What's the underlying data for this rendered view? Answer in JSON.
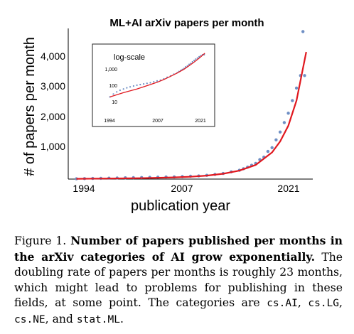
{
  "figure": {
    "main_chart": {
      "title": "ML+AI arXiv papers per month",
      "xlabel": "publication year",
      "ylabel": "# of papers per month",
      "y_ticks": [
        "1,000",
        "2,000",
        "3,000",
        "4,000"
      ],
      "x_ticks": [
        "1994",
        "2007",
        "2021"
      ]
    },
    "inset_chart": {
      "label": "log-scale",
      "y_ticks": [
        "10",
        "100",
        "1,000"
      ],
      "x_ticks": [
        "1994",
        "2007",
        "2021"
      ]
    },
    "colors": {
      "points": "#6f8fc4",
      "fit": "#e0181f"
    }
  },
  "caption": {
    "label": "Figure 1.",
    "bold_text": "Number of papers published per months in the arXiv categories of AI grow exponentially.",
    "text": "The doubling rate of papers per months is roughly 23 months, which might lead to problems for publishing in these fields, at some point.  The categories are",
    "categories": [
      "cs.AI",
      "cs.LG",
      "cs.NE",
      "stat.ML"
    ],
    "sep1": ", ",
    "sep2": ", ",
    "sep3": ", and ",
    "end": "."
  },
  "chart_data": [
    {
      "type": "scatter",
      "title": "ML+AI arXiv papers per month",
      "xlabel": "publication year",
      "ylabel": "# of papers per month",
      "xlim": [
        1993,
        2023
      ],
      "ylim": [
        0,
        4800
      ],
      "grid": false,
      "series": [
        {
          "x": [
            1994,
            1995,
            1996,
            1997,
            1998,
            1999,
            2000,
            2001,
            2002,
            2003,
            2004,
            2005,
            2006,
            2007,
            2008,
            2009,
            2010,
            2011,
            2012,
            2013,
            2014,
            2014.5,
            2015,
            2015.5,
            2016,
            2016.5,
            2017,
            2017.5,
            2018,
            2018.5,
            2019,
            2019.5,
            2020,
            2020.5,
            2021,
            2021.5,
            2022
          ],
          "y": [
            10,
            15,
            20,
            25,
            30,
            35,
            40,
            45,
            50,
            55,
            60,
            65,
            70,
            80,
            90,
            100,
            120,
            150,
            180,
            230,
            280,
            330,
            380,
            440,
            500,
            620,
            700,
            880,
            1000,
            1250,
            1500,
            1800,
            2100,
            2500,
            2900,
            3300,
            3300
          ]
        }
      ],
      "fit": {
        "x": [
          1994,
          1998,
          2002,
          2006,
          2008,
          2010,
          2012,
          2014,
          2016,
          2018,
          2019,
          2020,
          2021,
          2022.2
        ],
        "y": [
          10,
          18,
          30,
          55,
          75,
          110,
          170,
          270,
          450,
          850,
          1200,
          1700,
          2500,
          4050
        ]
      },
      "outliers": {
        "x": [
          2021.8
        ],
        "y": [
          4700
        ]
      }
    },
    {
      "type": "scatter",
      "title": "log-scale",
      "y_scale": "log",
      "xlim": [
        1993,
        2023
      ],
      "ylim": [
        1,
        3000
      ]
    }
  ]
}
